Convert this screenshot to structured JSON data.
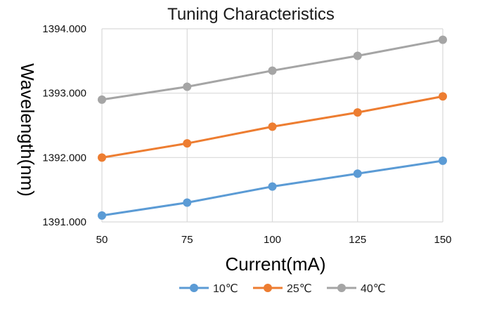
{
  "chart_data": {
    "type": "line",
    "title": "Tuning Characteristics",
    "xlabel": "Current(mA)",
    "ylabel": "Wavelength(nm)",
    "x": [
      50,
      75,
      100,
      125,
      150
    ],
    "x_tick_labels": [
      "50",
      "75",
      "100",
      "125",
      "150"
    ],
    "ylim": [
      1391,
      1394
    ],
    "y_ticks": [
      1391,
      1392,
      1393,
      1394
    ],
    "y_tick_labels": [
      "1391.000",
      "1392.000",
      "1393.000",
      "1394.000"
    ],
    "grid": true,
    "legend_position": "bottom",
    "series": [
      {
        "name": "10℃",
        "color": "#5b9bd5",
        "values": [
          1391.1,
          1391.3,
          1391.55,
          1391.75,
          1391.95
        ]
      },
      {
        "name": "25℃",
        "color": "#ed7d31",
        "values": [
          1392.0,
          1392.22,
          1392.48,
          1392.7,
          1392.95
        ]
      },
      {
        "name": "40℃",
        "color": "#a5a5a5",
        "values": [
          1392.9,
          1393.1,
          1393.35,
          1393.58,
          1393.83
        ]
      }
    ]
  }
}
